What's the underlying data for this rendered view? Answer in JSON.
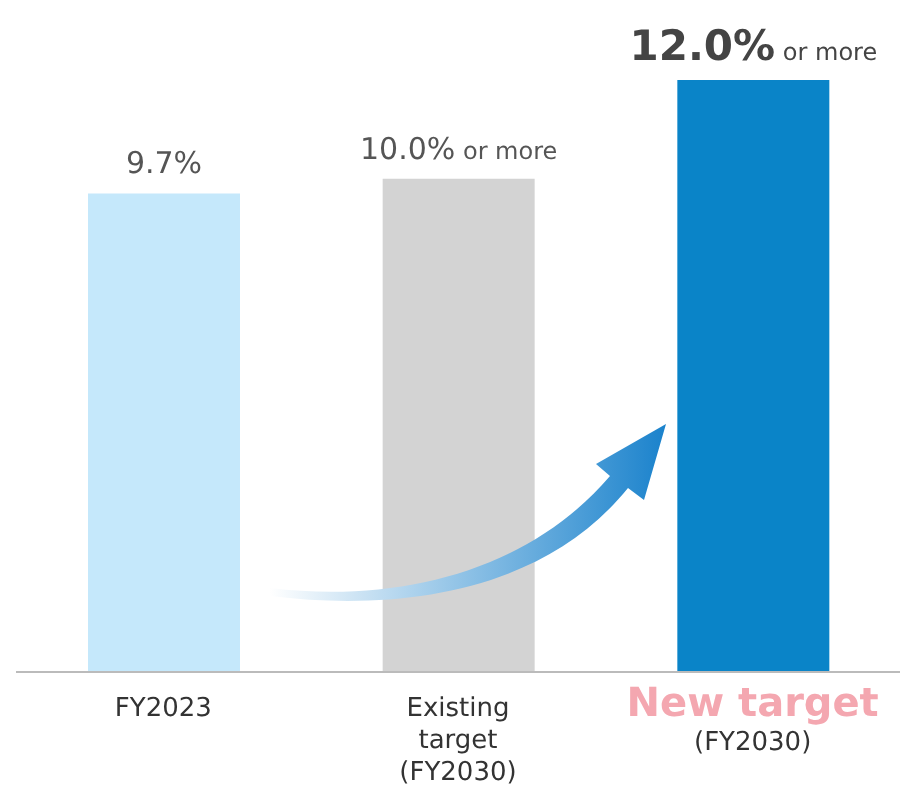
{
  "chart_data": {
    "type": "bar",
    "categories": [
      "FY2023",
      "Existing\ntarget\n(FY2030)",
      "New target\n(FY2030)"
    ],
    "values": [
      9.7,
      10.0,
      12.0
    ],
    "colors": [
      "#c5e8fb",
      "#d3d3d3",
      "#0a84c8"
    ],
    "value_labels": [
      "9.7%",
      "10.0% or more",
      "12.0% or more"
    ]
  }
}
